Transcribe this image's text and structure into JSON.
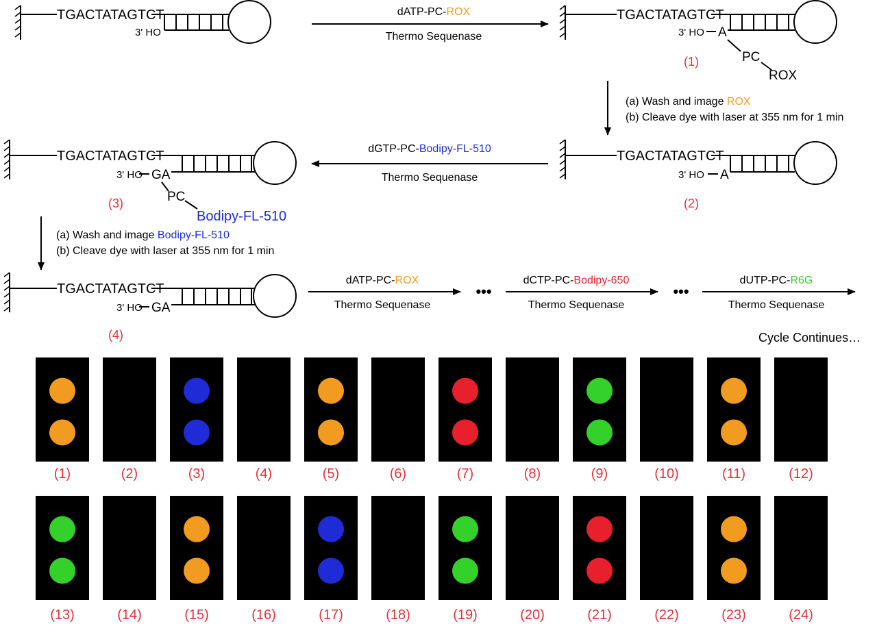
{
  "colors": {
    "ROX": "#f29b21",
    "Bodipy-FL-510": "#1e2bd6",
    "Bodipy-650": "#e8202d",
    "R6G": "#33d12a",
    "label": "#e2303b",
    "panel_bg": "#000000"
  },
  "dna": {
    "sequence": "TGACTATAGTCT",
    "hydroxyl": "3' HO"
  },
  "structures": {
    "s1": {
      "label": "(1)",
      "bases": "A",
      "linker": "PC",
      "dye": "ROX",
      "dye_color": "ROX"
    },
    "s2": {
      "label": "(2)",
      "bases": "A"
    },
    "s3": {
      "label": "(3)",
      "bases": "GA",
      "linker": "PC",
      "dye": "Bodipy-FL-510",
      "dye_color": "Bodipy-FL-510"
    },
    "s4": {
      "label": "(4)",
      "bases": "GA"
    }
  },
  "reactions": {
    "r1": {
      "prefix": "dATP-PC-",
      "dye": "ROX",
      "enzyme": "Thermo Sequenase"
    },
    "r2": {
      "prefix": "dGTP-PC-",
      "dye": "Bodipy-FL-510",
      "enzyme": "Thermo Sequenase"
    },
    "r3": {
      "prefix": "dATP-PC-",
      "dye": "ROX",
      "enzyme": "Thermo Sequenase"
    },
    "r4": {
      "prefix": "dCTP-PC-",
      "dye": "Bodipy-650",
      "enzyme": "Thermo Sequenase"
    },
    "r5": {
      "prefix": "dUTP-PC-",
      "dye": "R6G",
      "enzyme": "Thermo Sequenase"
    }
  },
  "wash_steps": {
    "w1": {
      "a_prefix": "(a) Wash and image ",
      "a_dye": "ROX",
      "b": "(b) Cleave dye with laser at 355 nm for 1 min"
    },
    "w2": {
      "a_prefix": "(a) Wash and image ",
      "a_dye": "Bodipy-FL-510",
      "b": "(b) Cleave dye with laser at 355 nm for 1 min"
    }
  },
  "ellipsis": "•••",
  "cycle_text": "Cycle Continues…",
  "panels": [
    {
      "label": "(1)",
      "dye": "ROX"
    },
    {
      "label": "(2)",
      "dye": "none"
    },
    {
      "label": "(3)",
      "dye": "Bodipy-FL-510"
    },
    {
      "label": "(4)",
      "dye": "none"
    },
    {
      "label": "(5)",
      "dye": "ROX"
    },
    {
      "label": "(6)",
      "dye": "none"
    },
    {
      "label": "(7)",
      "dye": "Bodipy-650"
    },
    {
      "label": "(8)",
      "dye": "none"
    },
    {
      "label": "(9)",
      "dye": "R6G"
    },
    {
      "label": "(10)",
      "dye": "none"
    },
    {
      "label": "(11)",
      "dye": "ROX"
    },
    {
      "label": "(12)",
      "dye": "none"
    },
    {
      "label": "(13)",
      "dye": "R6G"
    },
    {
      "label": "(14)",
      "dye": "none"
    },
    {
      "label": "(15)",
      "dye": "ROX"
    },
    {
      "label": "(16)",
      "dye": "none"
    },
    {
      "label": "(17)",
      "dye": "Bodipy-FL-510"
    },
    {
      "label": "(18)",
      "dye": "none"
    },
    {
      "label": "(19)",
      "dye": "R6G"
    },
    {
      "label": "(20)",
      "dye": "none"
    },
    {
      "label": "(21)",
      "dye": "Bodipy-650"
    },
    {
      "label": "(22)",
      "dye": "none"
    },
    {
      "label": "(23)",
      "dye": "ROX"
    },
    {
      "label": "(24)",
      "dye": "none"
    }
  ]
}
